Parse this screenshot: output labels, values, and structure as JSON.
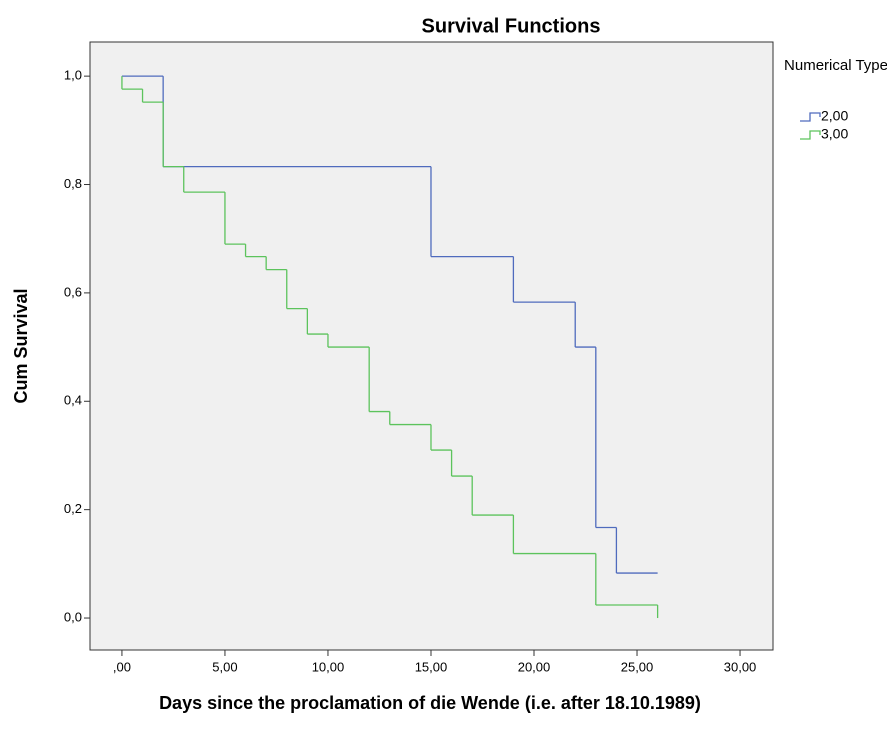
{
  "chart_data": {
    "type": "step",
    "title": "Survival Functions",
    "xlabel": "Days since the proclamation of die Wende (i.e. after 18.10.1989)",
    "ylabel": "Cum Survival",
    "legend_title": "Numerical Type",
    "legend": "right",
    "xlim": [
      -1.55,
      31.6
    ],
    "ylim": [
      -0.059,
      1.063
    ],
    "xticks": [
      {
        "value": 0,
        "label": ",00"
      },
      {
        "value": 5,
        "label": "5,00"
      },
      {
        "value": 10,
        "label": "10,00"
      },
      {
        "value": 15,
        "label": "15,00"
      },
      {
        "value": 20,
        "label": "20,00"
      },
      {
        "value": 25,
        "label": "25,00"
      },
      {
        "value": 30,
        "label": "30,00"
      }
    ],
    "yticks": [
      {
        "value": 0,
        "label": "0,0"
      },
      {
        "value": 0.2,
        "label": "0,2"
      },
      {
        "value": 0.4,
        "label": "0,4"
      },
      {
        "value": 0.6,
        "label": "0,6"
      },
      {
        "value": 0.8,
        "label": "0,8"
      },
      {
        "value": 1,
        "label": "1,0"
      }
    ],
    "series": [
      {
        "name": "2,00",
        "color": "#4f6bbd",
        "x": [
          0,
          2,
          15,
          19,
          22,
          23,
          24,
          26
        ],
        "values": [
          1,
          0.833,
          0.667,
          0.583,
          0.5,
          0.167,
          0.083,
          0.083
        ]
      },
      {
        "name": "3,00",
        "color": "#5cc35c",
        "x": [
          0,
          0,
          1,
          2,
          3,
          5,
          6,
          7,
          8,
          9,
          10,
          12,
          13,
          15,
          16,
          17,
          19,
          23,
          26
        ],
        "values": [
          1,
          0.976,
          0.952,
          0.833,
          0.786,
          0.69,
          0.667,
          0.643,
          0.571,
          0.524,
          0.5,
          0.381,
          0.357,
          0.31,
          0.262,
          0.19,
          0.119,
          0.024,
          0
        ]
      }
    ]
  }
}
